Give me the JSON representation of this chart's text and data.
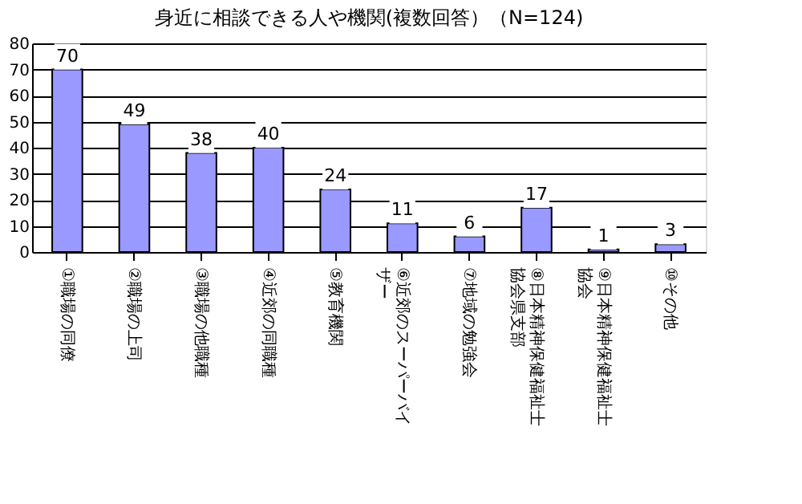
{
  "chart_data": {
    "type": "bar",
    "title": "身近に相談できる人や機関(複数回答）（N=124)",
    "categories": [
      "①職場の同僚",
      "②職場の上司",
      "③職場の他職種",
      "④近郊の同職種",
      "⑤教育機関",
      "⑥近郊のスーパーバイザー",
      "⑦地域の勉強会",
      "⑧日本精神保健福祉士協会県支部",
      "⑨日本精神保健福祉士協会",
      "⑩その他"
    ],
    "values": [
      70,
      49,
      38,
      40,
      24,
      11,
      6,
      17,
      1,
      3
    ],
    "color": "#9999ff",
    "ylim": [
      0,
      80
    ],
    "yticks": [
      0,
      10,
      20,
      30,
      40,
      50,
      60,
      70,
      80
    ],
    "grid": "y",
    "data_labels": true
  }
}
